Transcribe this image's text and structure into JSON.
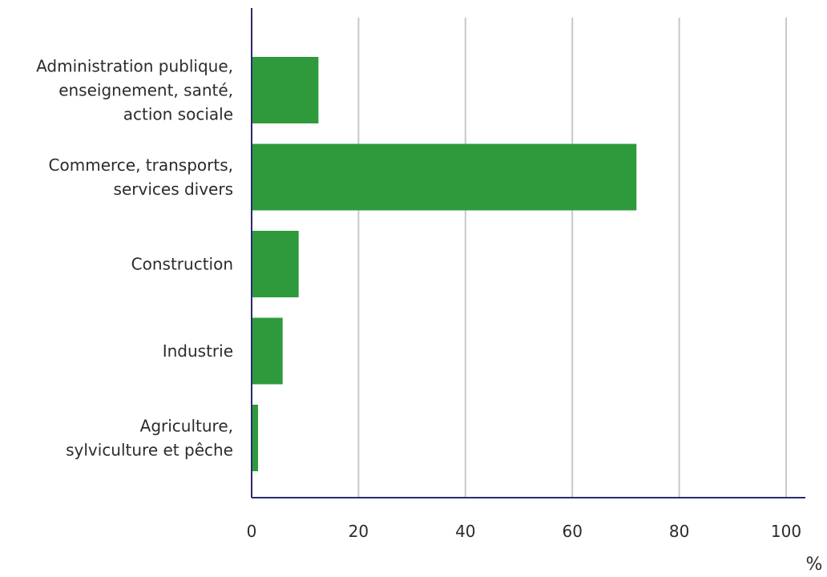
{
  "chart_data": {
    "type": "bar",
    "orientation": "horizontal",
    "categories": [
      [
        "Administration publique,",
        "enseignement, santé,",
        "action sociale"
      ],
      [
        "Commerce, transports,",
        "services divers"
      ],
      [
        "Construction"
      ],
      [
        "Industrie"
      ],
      [
        "Agriculture,",
        "sylviculture et pêche"
      ]
    ],
    "values": [
      12.5,
      72,
      8.8,
      5.8,
      1.2
    ],
    "xlim": [
      0,
      100
    ],
    "xticks": [
      0,
      20,
      40,
      60,
      80,
      100
    ],
    "x_unit": "%",
    "grid": "vertical",
    "legend": "none",
    "bar_color": "#2e9a3c",
    "axis_color": "#2a2a6e",
    "grid_color": "#c8c8c8"
  }
}
